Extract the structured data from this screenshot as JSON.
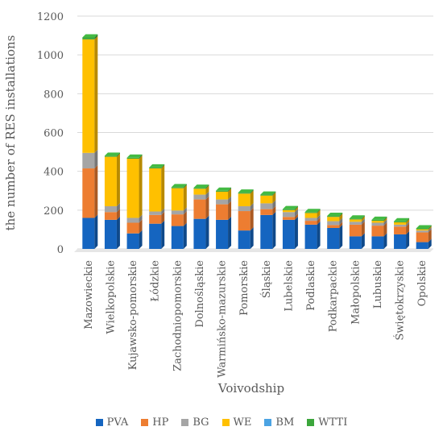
{
  "chart_data": {
    "type": "bar",
    "stacked": true,
    "ylabel": "the number of RES installations",
    "xlabel": "Voivodship",
    "ylim": [
      0,
      1200
    ],
    "yticks": [
      0,
      200,
      400,
      600,
      800,
      1000,
      1200
    ],
    "grid": true,
    "legend_position": "bottom",
    "categories": [
      "Mazowieckie",
      "Wielkopolskie",
      "Kujawsko-pomorskie",
      "Łódzkie",
      "Zachodniopomorskie",
      "Dolnośląskie",
      "Warmińsko-mazurskie",
      "Pomorskie",
      "Śląskie",
      "Lubelskie",
      "Podlaskie",
      "Podkarpackie",
      "Małopolskie",
      "Lubuskie",
      "Świętokrzyskie",
      "Opolskie"
    ],
    "series": [
      {
        "name": "PVA",
        "color": "#1565C0",
        "values": [
          160,
          150,
          80,
          130,
          118,
          155,
          150,
          95,
          175,
          150,
          125,
          108,
          65,
          65,
          75,
          35
        ]
      },
      {
        "name": "HP",
        "color": "#ED7D31",
        "values": [
          255,
          40,
          55,
          45,
          60,
          100,
          80,
          100,
          30,
          15,
          20,
          15,
          60,
          55,
          40,
          50
        ]
      },
      {
        "name": "BG",
        "color": "#A5A5A5",
        "values": [
          80,
          30,
          25,
          18,
          20,
          25,
          25,
          25,
          30,
          25,
          15,
          20,
          15,
          15,
          10,
          10
        ]
      },
      {
        "name": "WE",
        "color": "#FFC000",
        "values": [
          585,
          255,
          305,
          222,
          115,
          30,
          40,
          65,
          40,
          10,
          25,
          22,
          12,
          10,
          12,
          6
        ]
      },
      {
        "name": "BM",
        "color": "#4BA3E3",
        "values": [
          0,
          0,
          0,
          0,
          0,
          0,
          0,
          0,
          0,
          0,
          0,
          0,
          0,
          0,
          0,
          0
        ]
      },
      {
        "name": "WTTI",
        "color": "#3CA63C",
        "values": [
          10,
          5,
          5,
          5,
          5,
          5,
          5,
          5,
          5,
          5,
          5,
          5,
          5,
          5,
          5,
          5
        ]
      }
    ]
  }
}
